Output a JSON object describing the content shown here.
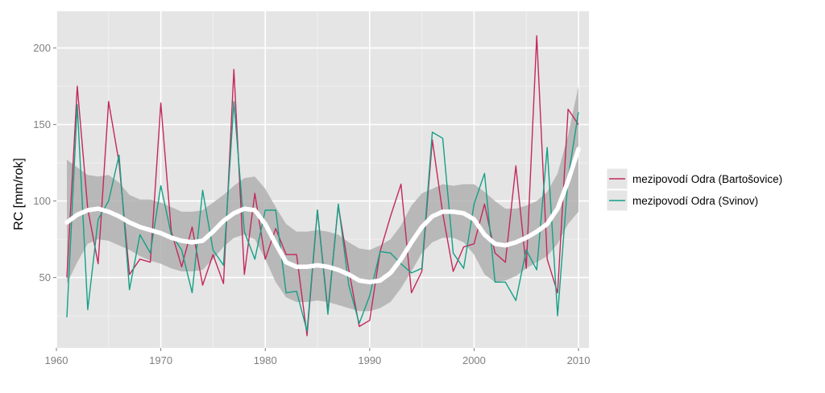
{
  "chart_data": {
    "type": "line",
    "xlabel": "",
    "ylabel": "RC [mm/rok]",
    "xlim": [
      1960,
      2011
    ],
    "ylim": [
      4,
      224
    ],
    "x_ticks": [
      1960,
      1970,
      1980,
      1990,
      2000,
      2010
    ],
    "y_ticks": [
      50,
      100,
      150,
      200
    ],
    "grid": true,
    "legend_position": "right",
    "colors": {
      "panel_background": "#e5e5e5",
      "grid": "#ffffff",
      "band": "#b0b0b0",
      "smooth": "#ffffff"
    },
    "x": [
      1961,
      1962,
      1963,
      1964,
      1965,
      1966,
      1967,
      1968,
      1969,
      1970,
      1971,
      1972,
      1973,
      1974,
      1975,
      1976,
      1977,
      1978,
      1979,
      1980,
      1981,
      1982,
      1983,
      1984,
      1985,
      1986,
      1987,
      1988,
      1989,
      1990,
      1991,
      1992,
      1993,
      1994,
      1995,
      1996,
      1997,
      1998,
      1999,
      2000,
      2001,
      2002,
      2003,
      2004,
      2005,
      2006,
      2007,
      2008,
      2009,
      2010
    ],
    "series": [
      {
        "name": "mezipovodí Odra (Bartošovice)",
        "color": "#c4285b",
        "values": [
          50,
          175,
          95,
          59,
          165,
          125,
          52,
          62,
          60,
          164,
          80,
          57,
          83,
          45,
          65,
          46,
          186,
          52,
          105,
          62,
          82,
          65,
          65,
          12,
          94,
          28,
          97,
          55,
          18,
          22,
          67,
          90,
          111,
          40,
          54,
          140,
          92,
          54,
          70,
          72,
          98,
          66,
          60,
          123,
          56,
          208,
          62,
          40,
          160,
          150
        ]
      },
      {
        "name": "mezipovodí Odra (Svinov)",
        "color": "#14a088",
        "values": [
          24,
          163,
          29,
          88,
          100,
          130,
          42,
          78,
          66,
          110,
          78,
          68,
          40,
          107,
          68,
          58,
          165,
          80,
          62,
          94,
          94,
          40,
          41,
          15,
          94,
          26,
          98,
          45,
          20,
          38,
          67,
          66,
          59,
          53,
          56,
          145,
          141,
          66,
          56,
          98,
          118,
          47,
          47,
          35,
          68,
          55,
          135,
          25,
          115,
          158
        ]
      }
    ],
    "smooth": {
      "x": [
        1961,
        1962,
        1963,
        1964,
        1965,
        1966,
        1967,
        1968,
        1969,
        1970,
        1971,
        1972,
        1973,
        1974,
        1975,
        1976,
        1977,
        1978,
        1979,
        1980,
        1981,
        1982,
        1983,
        1984,
        1985,
        1986,
        1987,
        1988,
        1989,
        1990,
        1991,
        1992,
        1993,
        1994,
        1995,
        1996,
        1997,
        1998,
        1999,
        2000,
        2001,
        2002,
        2003,
        2004,
        2005,
        2006,
        2007,
        2008,
        2009,
        2010
      ],
      "y": [
        86,
        91,
        94,
        95,
        93,
        90,
        86,
        83,
        81,
        79,
        76,
        74,
        73,
        74,
        80,
        87,
        92,
        95,
        94,
        85,
        72,
        60,
        57,
        57,
        58,
        57,
        55,
        52,
        48,
        47,
        48,
        53,
        62,
        73,
        83,
        90,
        93,
        93,
        92,
        88,
        78,
        72,
        71,
        73,
        76,
        80,
        85,
        95,
        113,
        134
      ],
      "lower": [
        46,
        60,
        72,
        75,
        74,
        71,
        68,
        64,
        61,
        59,
        56,
        54,
        54,
        55,
        62,
        70,
        76,
        78,
        75,
        62,
        47,
        37,
        34,
        34,
        35,
        34,
        32,
        30,
        28,
        28,
        30,
        34,
        43,
        54,
        66,
        73,
        76,
        76,
        73,
        65,
        52,
        47,
        48,
        51,
        56,
        60,
        64,
        72,
        85,
        93
      ],
      "upper": [
        127,
        122,
        117,
        116,
        117,
        112,
        104,
        101,
        101,
        99,
        96,
        93,
        93,
        94,
        99,
        104,
        110,
        115,
        116,
        108,
        96,
        85,
        80,
        80,
        81,
        80,
        78,
        73,
        69,
        68,
        71,
        75,
        84,
        97,
        105,
        108,
        111,
        110,
        111,
        111,
        106,
        100,
        95,
        95,
        97,
        100,
        106,
        118,
        143,
        175
      ]
    }
  }
}
